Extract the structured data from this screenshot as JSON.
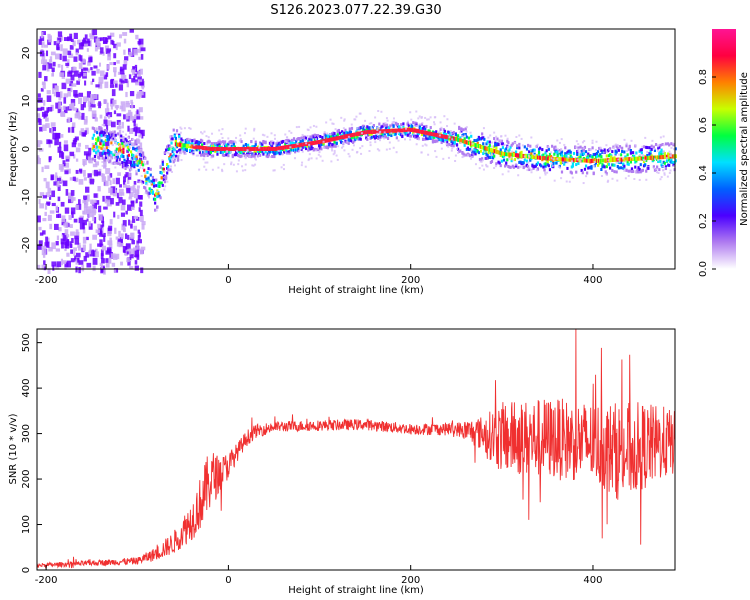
{
  "title": "S126.2023.077.22.39.G30",
  "chart_data": [
    {
      "type": "heatmap",
      "xlabel": "Height of straight line (km)",
      "ylabel": "Frequency (Hz)",
      "xlim": [
        -210,
        490
      ],
      "ylim": [
        -25,
        25
      ],
      "xticks": [
        -200,
        0,
        200,
        400
      ],
      "yticks": [
        -20,
        -10,
        0,
        10,
        20
      ],
      "colorbar": {
        "label": "Normalized spectral amplitude",
        "range": [
          0.0,
          1.0
        ],
        "ticks": [
          0.0,
          0.2,
          0.4,
          0.6,
          0.8
        ],
        "colors": [
          "#ffffff",
          "#b07cf0",
          "#4b00ff",
          "#0060ff",
          "#00e0ff",
          "#00ff40",
          "#c8ff00",
          "#ff8000",
          "#ff0040",
          "#ff1493"
        ]
      },
      "ridge_frequency_hz": {
        "x": [
          -140,
          -120,
          -100,
          -90,
          -80,
          -70,
          -60,
          -40,
          -20,
          0,
          50,
          100,
          150,
          200,
          250,
          300,
          350,
          400,
          450,
          490
        ],
        "y": [
          1,
          0,
          -2,
          -6,
          -10,
          -3,
          1,
          0.5,
          0,
          0,
          0,
          1.5,
          3.5,
          4,
          2,
          -1,
          -2,
          -2.5,
          -2,
          -1.5
        ]
      }
    },
    {
      "type": "line",
      "xlabel": "Height of straight line (km)",
      "ylabel": "SNR (10 * v/v)",
      "xlim": [
        -210,
        490
      ],
      "ylim": [
        0,
        530
      ],
      "xticks": [
        -200,
        0,
        200,
        400
      ],
      "yticks": [
        0,
        100,
        200,
        300,
        400,
        500
      ],
      "color": "#f03030",
      "series": [
        {
          "x": [
            -210,
            -150,
            -100,
            -80,
            -60,
            -40,
            -30,
            -20,
            -10,
            0,
            10,
            20,
            30,
            50,
            100,
            150,
            200,
            250,
            280,
            300,
            350,
            400,
            430,
            450,
            480,
            490
          ],
          "mean": [
            10,
            15,
            20,
            35,
            60,
            110,
            150,
            200,
            210,
            230,
            260,
            290,
            305,
            315,
            318,
            320,
            310,
            310,
            300,
            290,
            290,
            280,
            260,
            270,
            280,
            280
          ],
          "spread": [
            5,
            6,
            8,
            15,
            25,
            45,
            60,
            70,
            40,
            30,
            20,
            18,
            15,
            12,
            12,
            12,
            12,
            15,
            40,
            80,
            90,
            90,
            110,
            100,
            80,
            70
          ]
        }
      ]
    }
  ]
}
